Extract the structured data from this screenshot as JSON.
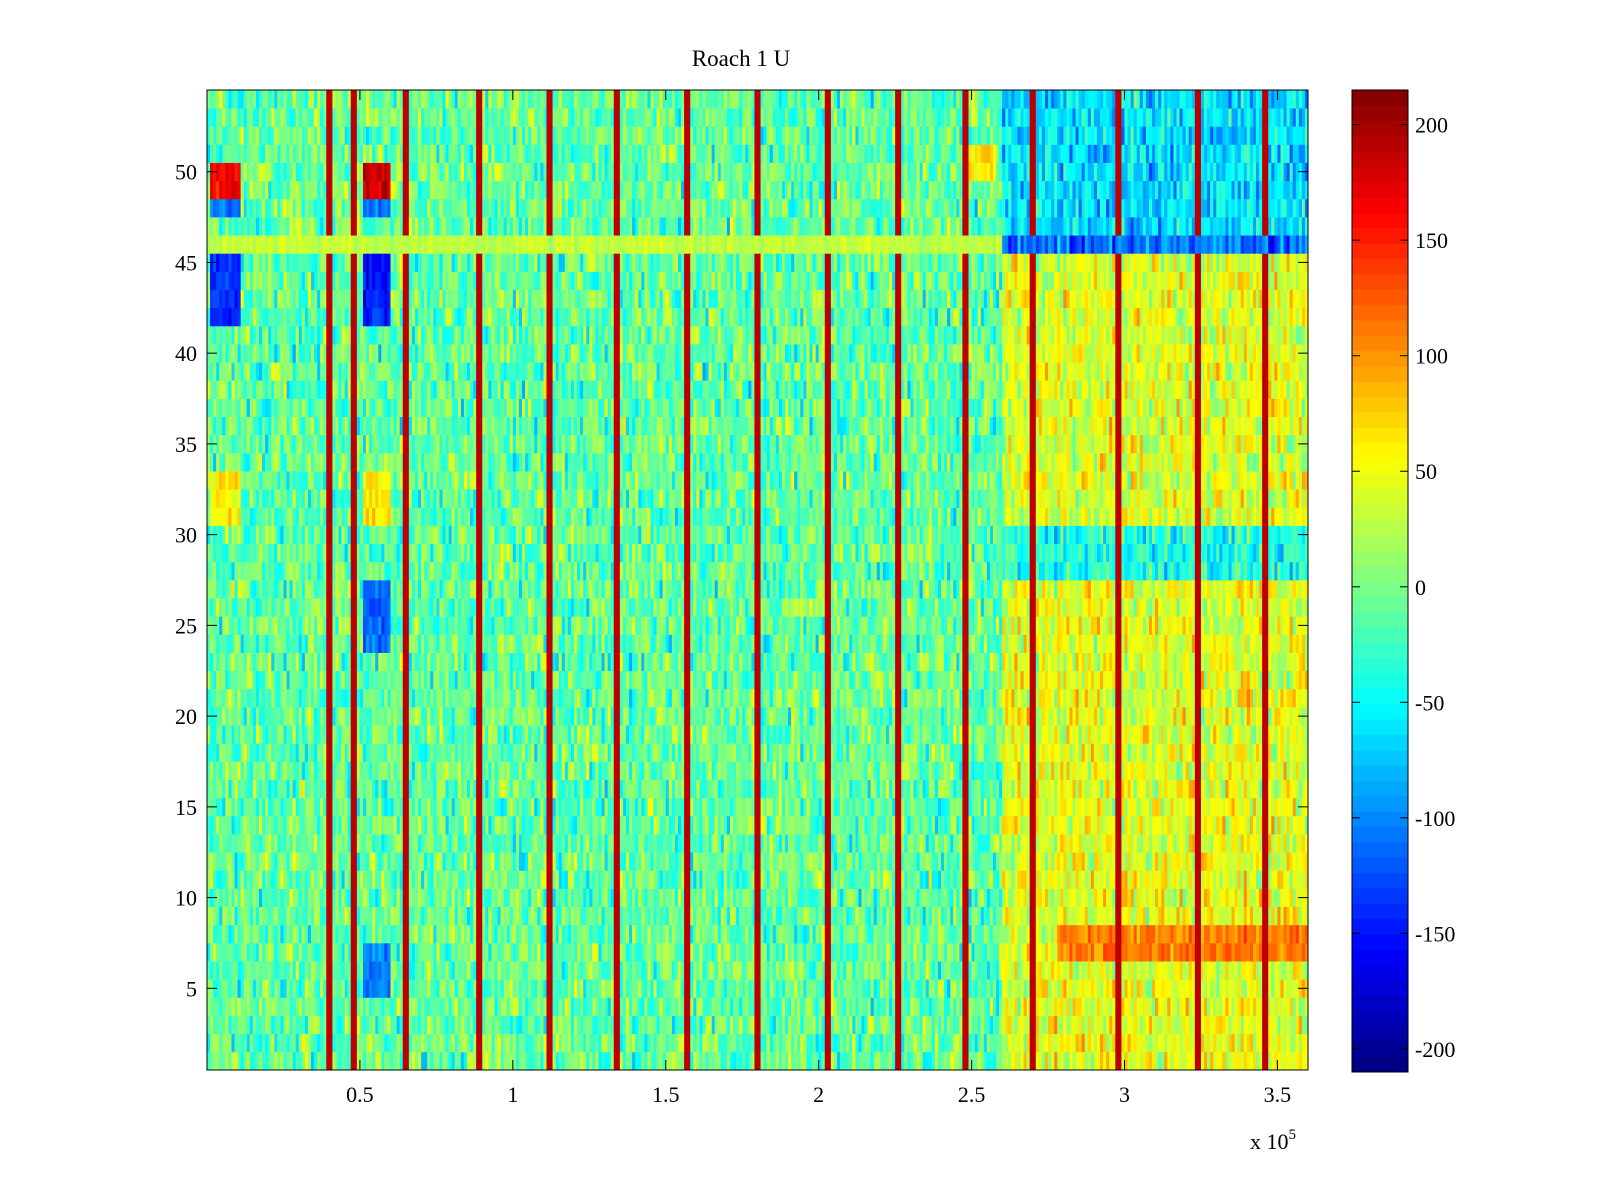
{
  "chart_data": {
    "type": "heatmap",
    "title": "Roach 1 U",
    "xlabel": "",
    "ylabel": "",
    "x_multiplier_label": "x 10",
    "x_multiplier_exponent": "5",
    "xlim": [
      0,
      3.6
    ],
    "ylim": [
      0.5,
      54.5
    ],
    "n_rows": 54,
    "x_ticks": [
      0.5,
      1,
      1.5,
      2,
      2.5,
      3,
      3.5
    ],
    "x_tick_labels": [
      "0.5",
      "1",
      "1.5",
      "2",
      "2.5",
      "3",
      "3.5"
    ],
    "y_ticks": [
      5,
      10,
      15,
      20,
      25,
      30,
      35,
      40,
      45,
      50
    ],
    "y_tick_labels": [
      "5",
      "10",
      "15",
      "20",
      "25",
      "30",
      "35",
      "40",
      "45",
      "50"
    ],
    "colormap": "jet",
    "clim": [
      -210,
      215
    ],
    "colorbar_ticks": [
      -200,
      -150,
      -100,
      -50,
      0,
      50,
      100,
      150,
      200
    ],
    "colorbar_tick_labels": [
      "-200",
      "-150",
      "-100",
      "-50",
      "0",
      "50",
      "100",
      "150",
      "200"
    ],
    "baseline_value": -10,
    "regime_change_x": 2.6,
    "after_change_rows": {
      "low_band_rows_1_27": 45,
      "rows_28_30": -40,
      "rows_31_45": 40,
      "row_46": -110,
      "rows_47_54": -65
    },
    "vertical_stripes_x": [
      0.4,
      0.48,
      0.65,
      0.89,
      1.12,
      1.34,
      1.57,
      1.8,
      2.03,
      2.26,
      2.48,
      2.7,
      2.98,
      3.24,
      3.46
    ],
    "stripe_value": 190,
    "row_46_value_before_change": 30,
    "patches": [
      {
        "x_range": [
          0.01,
          0.11
        ],
        "rows": [
          49,
          50
        ],
        "value": 170
      },
      {
        "x_range": [
          0.51,
          0.6
        ],
        "rows": [
          49,
          50
        ],
        "value": 180
      },
      {
        "x_range": [
          0.01,
          0.11
        ],
        "rows": [
          48
        ],
        "value": -110
      },
      {
        "x_range": [
          0.51,
          0.6
        ],
        "rows": [
          48
        ],
        "value": -110
      },
      {
        "x_range": [
          0.01,
          0.11
        ],
        "rows": [
          42,
          43,
          44,
          45
        ],
        "value": -140
      },
      {
        "x_range": [
          0.51,
          0.6
        ],
        "rows": [
          42,
          43,
          44,
          45
        ],
        "value": -150
      },
      {
        "x_range": [
          0.51,
          0.6
        ],
        "rows": [
          24,
          25,
          26,
          27
        ],
        "value": -110
      },
      {
        "x_range": [
          0.51,
          0.6
        ],
        "rows": [
          5,
          6,
          7
        ],
        "value": -100
      },
      {
        "x_range": [
          0.01,
          0.11
        ],
        "rows": [
          31,
          32,
          33
        ],
        "value": 60
      },
      {
        "x_range": [
          0.51,
          0.6
        ],
        "rows": [
          31,
          32,
          33
        ],
        "value": 60
      },
      {
        "x_range": [
          2.78,
          3.6
        ],
        "rows": [
          7,
          8
        ],
        "value": 110
      },
      {
        "x_range": [
          2.48,
          2.58
        ],
        "rows": [
          50,
          51
        ],
        "value": 60
      }
    ]
  }
}
